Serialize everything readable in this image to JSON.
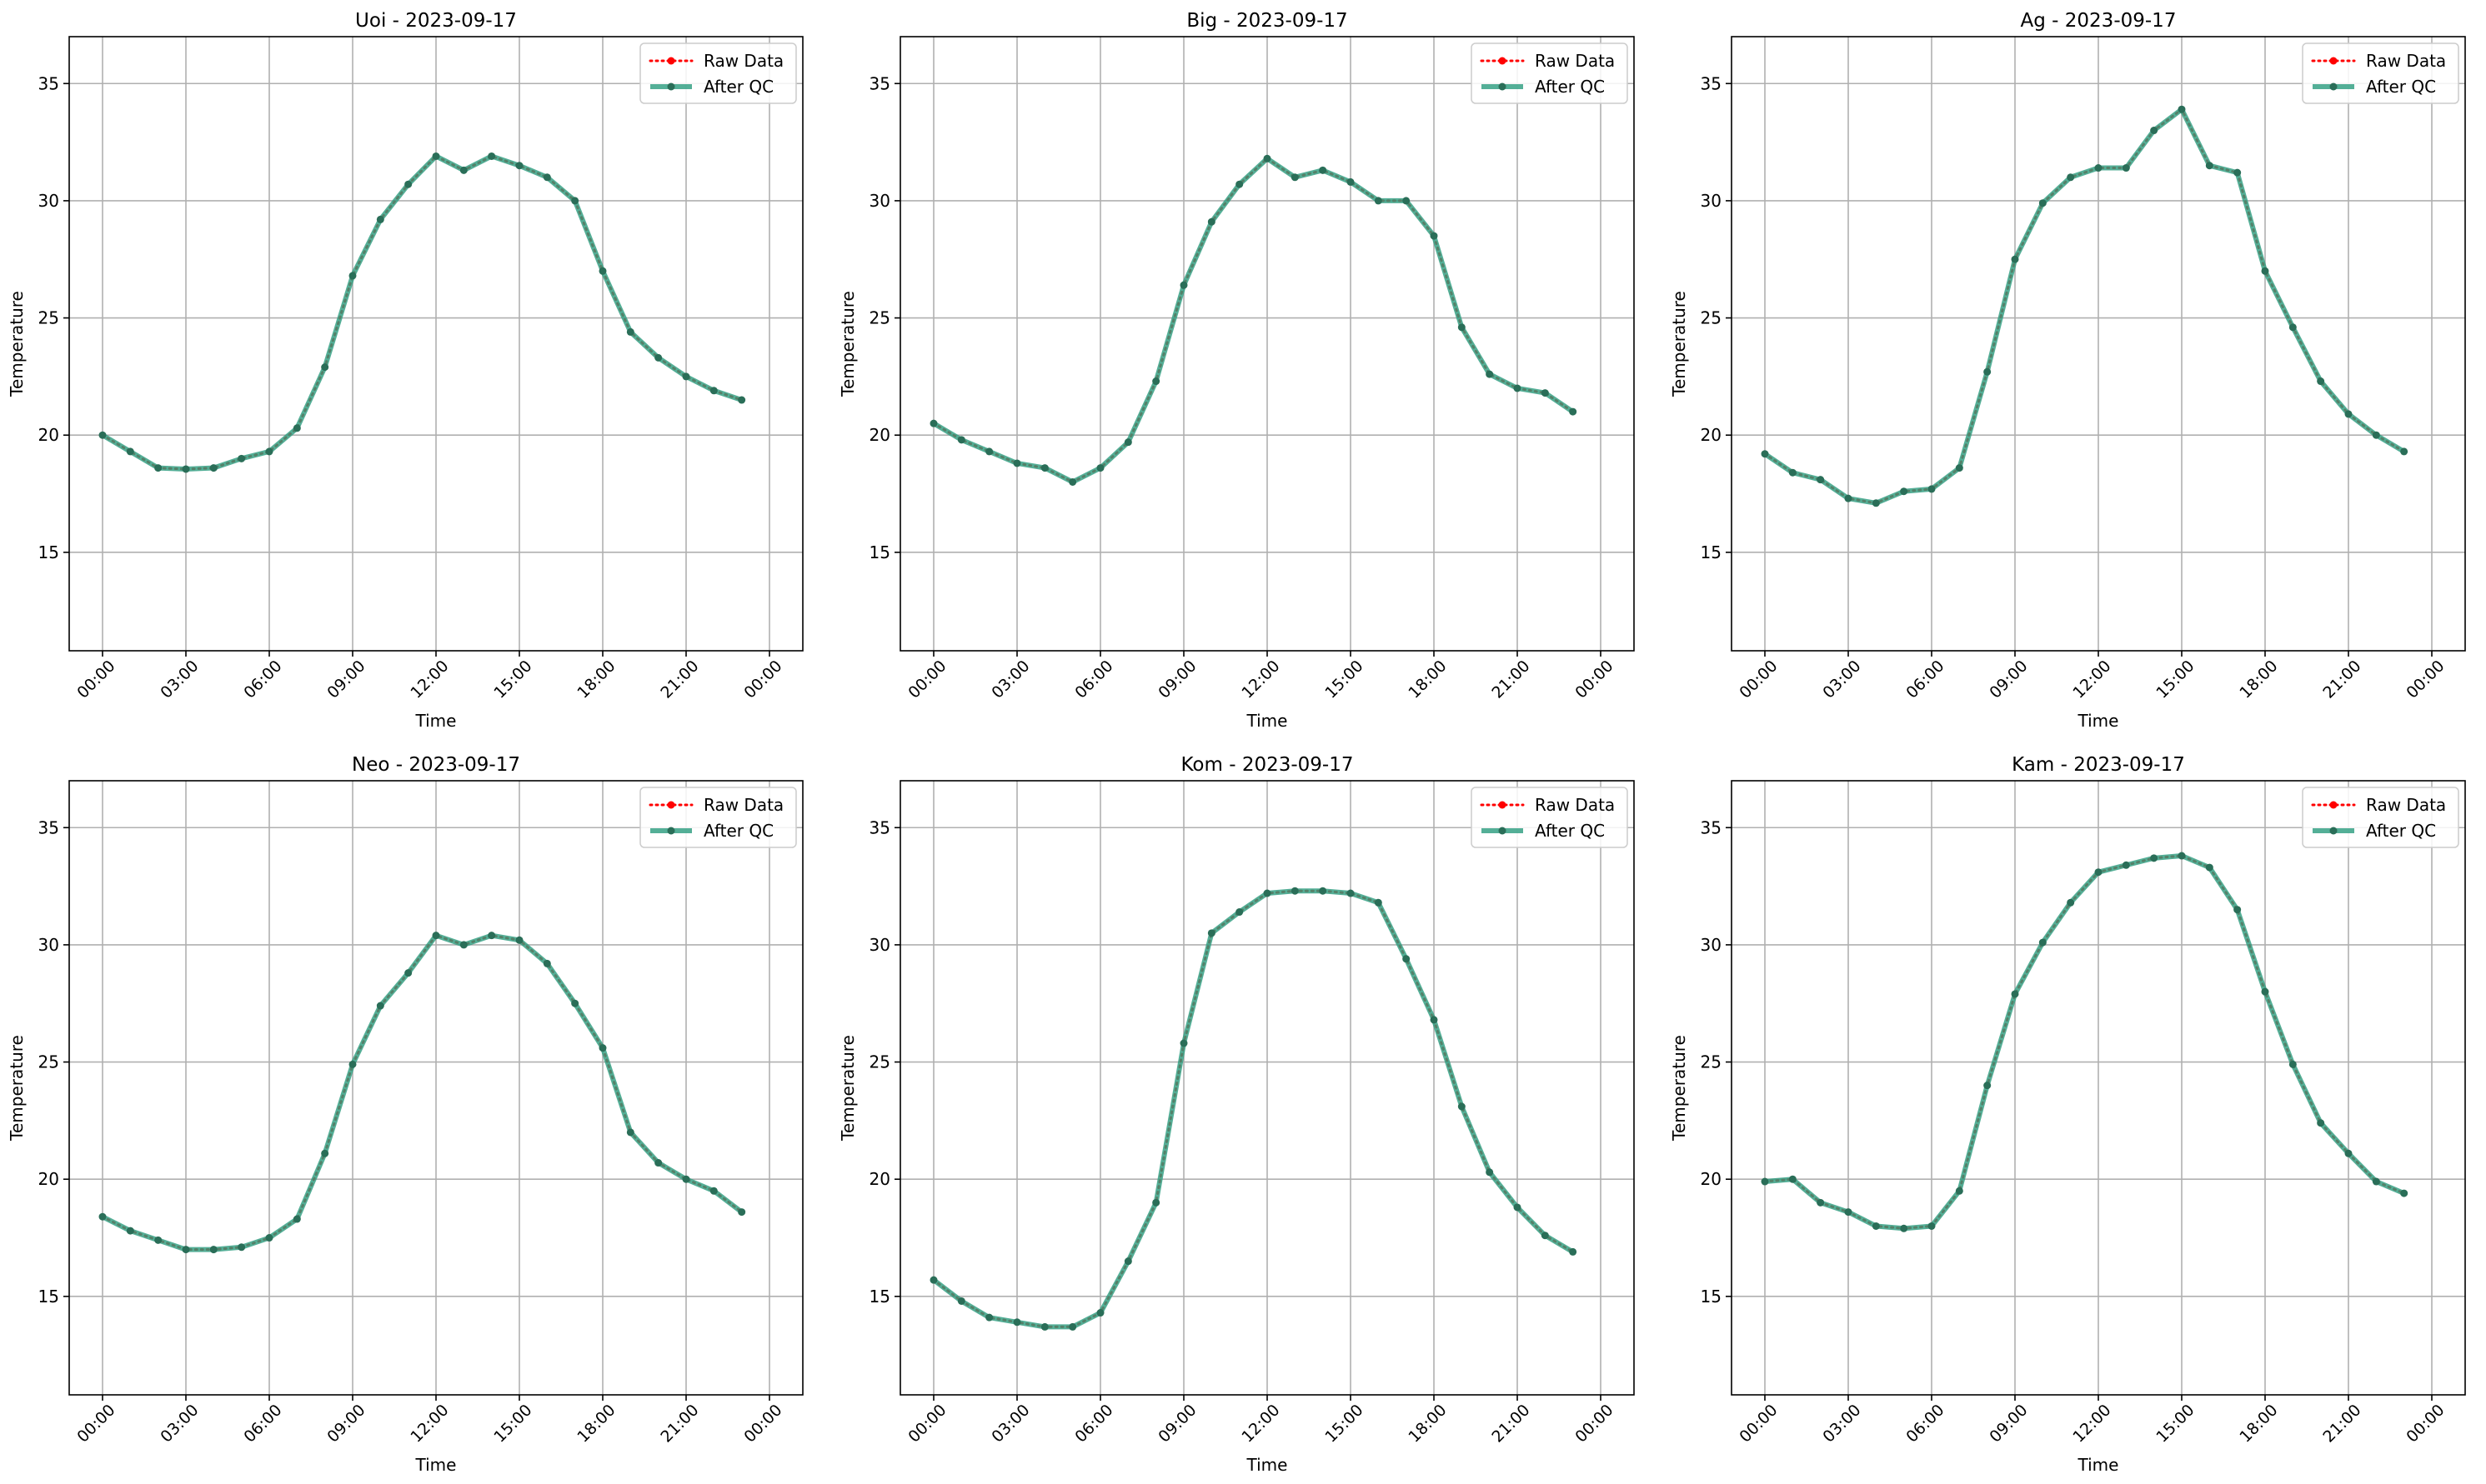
{
  "figure": {
    "legend_labels": {
      "raw": "Raw Data",
      "qc": "After QC"
    },
    "xlabel": "Time",
    "ylabel": "Temperature",
    "colors": {
      "raw": "#ff0000",
      "qc": "#2e9e80",
      "qc_marker": "#2a6e58",
      "grid": "#b0b0b0"
    }
  },
  "chart_data": [
    {
      "type": "line",
      "title": "Uoi - 2023-09-17",
      "xlabel": "Time",
      "ylabel": "Temperature",
      "x_hours": [
        0,
        1,
        2,
        3,
        4,
        5,
        6,
        7,
        8,
        9,
        10,
        11,
        12,
        13,
        14,
        15,
        16,
        17,
        18,
        19,
        20,
        21,
        22,
        23
      ],
      "xtick_labels": [
        "00:00",
        "03:00",
        "06:00",
        "09:00",
        "12:00",
        "15:00",
        "18:00",
        "21:00",
        "00:00"
      ],
      "ylim": [
        10.8,
        37.0
      ],
      "yticks": [
        15,
        20,
        25,
        30,
        35
      ],
      "grid": true,
      "legend": "top-right",
      "series": [
        {
          "name": "Raw Data",
          "values": [
            20.0,
            19.3,
            18.6,
            18.55,
            18.6,
            19.0,
            19.3,
            20.3,
            22.9,
            26.8,
            29.2,
            30.7,
            31.9,
            31.3,
            31.9,
            31.5,
            31.0,
            30.0,
            27.0,
            24.4,
            23.3,
            22.5,
            21.9,
            21.5
          ]
        },
        {
          "name": "After QC",
          "values": [
            20.0,
            19.3,
            18.6,
            18.55,
            18.6,
            19.0,
            19.3,
            20.3,
            22.9,
            26.8,
            29.2,
            30.7,
            31.9,
            31.3,
            31.9,
            31.5,
            31.0,
            30.0,
            27.0,
            24.4,
            23.3,
            22.5,
            21.9,
            21.5
          ]
        }
      ]
    },
    {
      "type": "line",
      "title": "Big - 2023-09-17",
      "xlabel": "Time",
      "ylabel": "Temperature",
      "x_hours": [
        0,
        1,
        2,
        3,
        4,
        5,
        6,
        7,
        8,
        9,
        10,
        11,
        12,
        13,
        14,
        15,
        16,
        17,
        18,
        19,
        20,
        21,
        22,
        23
      ],
      "xtick_labels": [
        "00:00",
        "03:00",
        "06:00",
        "09:00",
        "12:00",
        "15:00",
        "18:00",
        "21:00",
        "00:00"
      ],
      "ylim": [
        10.8,
        37.0
      ],
      "yticks": [
        15,
        20,
        25,
        30,
        35
      ],
      "grid": true,
      "legend": "top-right",
      "series": [
        {
          "name": "Raw Data",
          "values": [
            20.5,
            19.8,
            19.3,
            18.8,
            18.6,
            18.0,
            18.6,
            19.7,
            22.3,
            26.4,
            29.1,
            30.7,
            31.8,
            31.0,
            31.3,
            30.8,
            30.0,
            30.0,
            28.5,
            24.6,
            22.6,
            22.0,
            21.8,
            21.0
          ]
        },
        {
          "name": "After QC",
          "values": [
            20.5,
            19.8,
            19.3,
            18.8,
            18.6,
            18.0,
            18.6,
            19.7,
            22.3,
            26.4,
            29.1,
            30.7,
            31.8,
            31.0,
            31.3,
            30.8,
            30.0,
            30.0,
            28.5,
            24.6,
            22.6,
            22.0,
            21.8,
            21.0
          ]
        }
      ]
    },
    {
      "type": "line",
      "title": "Ag - 2023-09-17",
      "xlabel": "Time",
      "ylabel": "Temperature",
      "x_hours": [
        0,
        1,
        2,
        3,
        4,
        5,
        6,
        7,
        8,
        9,
        10,
        11,
        12,
        13,
        14,
        15,
        16,
        17,
        18,
        19,
        20,
        21,
        22,
        23
      ],
      "xtick_labels": [
        "00:00",
        "03:00",
        "06:00",
        "09:00",
        "12:00",
        "15:00",
        "18:00",
        "21:00",
        "00:00"
      ],
      "ylim": [
        10.8,
        37.0
      ],
      "yticks": [
        15,
        20,
        25,
        30,
        35
      ],
      "grid": true,
      "legend": "top-right",
      "series": [
        {
          "name": "Raw Data",
          "values": [
            19.2,
            18.4,
            18.1,
            17.3,
            17.1,
            17.6,
            17.7,
            18.6,
            22.7,
            27.5,
            29.9,
            31.0,
            31.4,
            31.4,
            33.0,
            33.9,
            31.5,
            31.2,
            27.0,
            24.6,
            22.3,
            20.9,
            20.0,
            19.3
          ]
        },
        {
          "name": "After QC",
          "values": [
            19.2,
            18.4,
            18.1,
            17.3,
            17.1,
            17.6,
            17.7,
            18.6,
            22.7,
            27.5,
            29.9,
            31.0,
            31.4,
            31.4,
            33.0,
            33.9,
            31.5,
            31.2,
            27.0,
            24.6,
            22.3,
            20.9,
            20.0,
            19.3
          ]
        }
      ]
    },
    {
      "type": "line",
      "title": "Neo - 2023-09-17",
      "xlabel": "Time",
      "ylabel": "Temperature",
      "x_hours": [
        0,
        1,
        2,
        3,
        4,
        5,
        6,
        7,
        8,
        9,
        10,
        11,
        12,
        13,
        14,
        15,
        16,
        17,
        18,
        19,
        20,
        21,
        22,
        23
      ],
      "xtick_labels": [
        "00:00",
        "03:00",
        "06:00",
        "09:00",
        "12:00",
        "15:00",
        "18:00",
        "21:00",
        "00:00"
      ],
      "ylim": [
        10.8,
        37.0
      ],
      "yticks": [
        15,
        20,
        25,
        30,
        35
      ],
      "grid": true,
      "legend": "top-right",
      "series": [
        {
          "name": "Raw Data",
          "values": [
            18.4,
            17.8,
            17.4,
            17.0,
            17.0,
            17.1,
            17.5,
            18.3,
            21.1,
            24.9,
            27.4,
            28.8,
            30.4,
            30.0,
            30.4,
            30.2,
            29.2,
            27.5,
            25.6,
            22.0,
            20.7,
            20.0,
            19.5,
            18.6
          ]
        },
        {
          "name": "After QC",
          "values": [
            18.4,
            17.8,
            17.4,
            17.0,
            17.0,
            17.1,
            17.5,
            18.3,
            21.1,
            24.9,
            27.4,
            28.8,
            30.4,
            30.0,
            30.4,
            30.2,
            29.2,
            27.5,
            25.6,
            22.0,
            20.7,
            20.0,
            19.5,
            18.6
          ]
        }
      ]
    },
    {
      "type": "line",
      "title": "Kom - 2023-09-17",
      "xlabel": "Time",
      "ylabel": "Temperature",
      "x_hours": [
        0,
        1,
        2,
        3,
        4,
        5,
        6,
        7,
        8,
        9,
        10,
        11,
        12,
        13,
        14,
        15,
        16,
        17,
        18,
        19,
        20,
        21,
        22,
        23
      ],
      "xtick_labels": [
        "00:00",
        "03:00",
        "06:00",
        "09:00",
        "12:00",
        "15:00",
        "18:00",
        "21:00",
        "00:00"
      ],
      "ylim": [
        10.8,
        37.0
      ],
      "yticks": [
        15,
        20,
        25,
        30,
        35
      ],
      "grid": true,
      "legend": "top-right",
      "series": [
        {
          "name": "Raw Data",
          "values": [
            15.7,
            14.8,
            14.1,
            13.9,
            13.7,
            13.7,
            14.3,
            16.5,
            19.0,
            25.8,
            30.5,
            31.4,
            32.2,
            32.3,
            32.3,
            32.2,
            31.8,
            29.4,
            26.8,
            23.1,
            20.3,
            18.8,
            17.6,
            16.9
          ]
        },
        {
          "name": "After QC",
          "values": [
            15.7,
            14.8,
            14.1,
            13.9,
            13.7,
            13.7,
            14.3,
            16.5,
            19.0,
            25.8,
            30.5,
            31.4,
            32.2,
            32.3,
            32.3,
            32.2,
            31.8,
            29.4,
            26.8,
            23.1,
            20.3,
            18.8,
            17.6,
            16.9
          ]
        }
      ]
    },
    {
      "type": "line",
      "title": "Kam - 2023-09-17",
      "xlabel": "Time",
      "ylabel": "Temperature",
      "x_hours": [
        0,
        1,
        2,
        3,
        4,
        5,
        6,
        7,
        8,
        9,
        10,
        11,
        12,
        13,
        14,
        15,
        16,
        17,
        18,
        19,
        20,
        21,
        22,
        23
      ],
      "xtick_labels": [
        "00:00",
        "03:00",
        "06:00",
        "09:00",
        "12:00",
        "15:00",
        "18:00",
        "21:00",
        "00:00"
      ],
      "ylim": [
        10.8,
        37.0
      ],
      "yticks": [
        15,
        20,
        25,
        30,
        35
      ],
      "grid": true,
      "legend": "top-right",
      "series": [
        {
          "name": "Raw Data",
          "values": [
            19.9,
            20.0,
            19.0,
            18.6,
            18.0,
            17.9,
            18.0,
            19.5,
            24.0,
            27.9,
            30.1,
            31.8,
            33.1,
            33.4,
            33.7,
            33.8,
            33.3,
            31.5,
            28.0,
            24.9,
            22.4,
            21.1,
            19.9,
            19.4
          ]
        },
        {
          "name": "After QC",
          "values": [
            19.9,
            20.0,
            19.0,
            18.6,
            18.0,
            17.9,
            18.0,
            19.5,
            24.0,
            27.9,
            30.1,
            31.8,
            33.1,
            33.4,
            33.7,
            33.8,
            33.3,
            31.5,
            28.0,
            24.9,
            22.4,
            21.1,
            19.9,
            19.4
          ]
        }
      ]
    }
  ]
}
